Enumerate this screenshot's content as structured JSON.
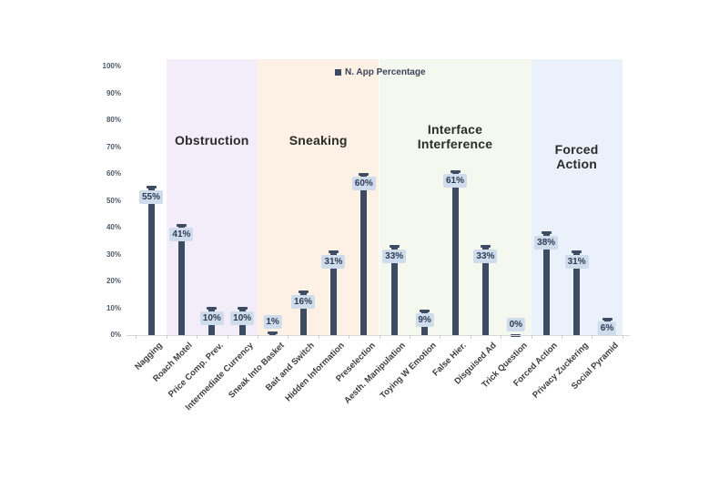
{
  "chart_data": {
    "type": "bar",
    "title": "",
    "legend": [
      {
        "label": "N. App Percentage"
      }
    ],
    "legend_position": "top-center",
    "grid": false,
    "categories": [
      "Nagging",
      "Roach Motel",
      "Price Comp. Prev.",
      "Intermediate Currency",
      "Sneak Into Basket",
      "Bait and Switch",
      "Hidden Information",
      "Preselection",
      "Aesth. Manipulation",
      "Toying W Emotion",
      "False Hier.",
      "Disguised Ad",
      "Trick Question",
      "Forced Action",
      "Privacy Zuckering",
      "Social Pyramid"
    ],
    "values": [
      55,
      41,
      10,
      10,
      1,
      16,
      31,
      60,
      33,
      9,
      61,
      33,
      0,
      38,
      31,
      6
    ],
    "value_labels": [
      "55%",
      "41%",
      "10%",
      "10%",
      "1%",
      "16%",
      "31%",
      "60%",
      "33%",
      "9%",
      "61%",
      "33%",
      "0%",
      "38%",
      "31%",
      "6%"
    ],
    "ylim": [
      0,
      100
    ],
    "yticks": [
      "100%",
      "90%",
      "80%",
      "70%",
      "60%",
      "50%",
      "40%",
      "30%",
      "20%",
      "10%",
      "0%"
    ],
    "xlabel": "",
    "ylabel": "",
    "groups": [
      {
        "label": "Obstruction",
        "start": 1,
        "end": 3,
        "color": "#f2edf9"
      },
      {
        "label": "Sneaking",
        "start": 4,
        "end": 7,
        "color": "#fdf0e5"
      },
      {
        "label": "Interface Interference",
        "label_lines": [
          "Interface",
          "Interference"
        ],
        "start": 8,
        "end": 12,
        "color": "#f5f8ee"
      },
      {
        "label": "Forced Action",
        "start": 13,
        "end": 15,
        "color": "#ebf1fb"
      }
    ],
    "colors": {
      "bar": "#3d4b63",
      "marker": "#3d4b63",
      "value_box_bg": "#cfdcec",
      "value_text": "#2d3c55",
      "axis_line": "#d9d9d9",
      "axis_tick": "#cccccc",
      "ytick_text": "#4e5a6b",
      "xtick_text": "#3d3d3d",
      "band_title_text": "#2b2b2b",
      "legend_text": "#3a4358",
      "background": "#ffffff"
    }
  }
}
